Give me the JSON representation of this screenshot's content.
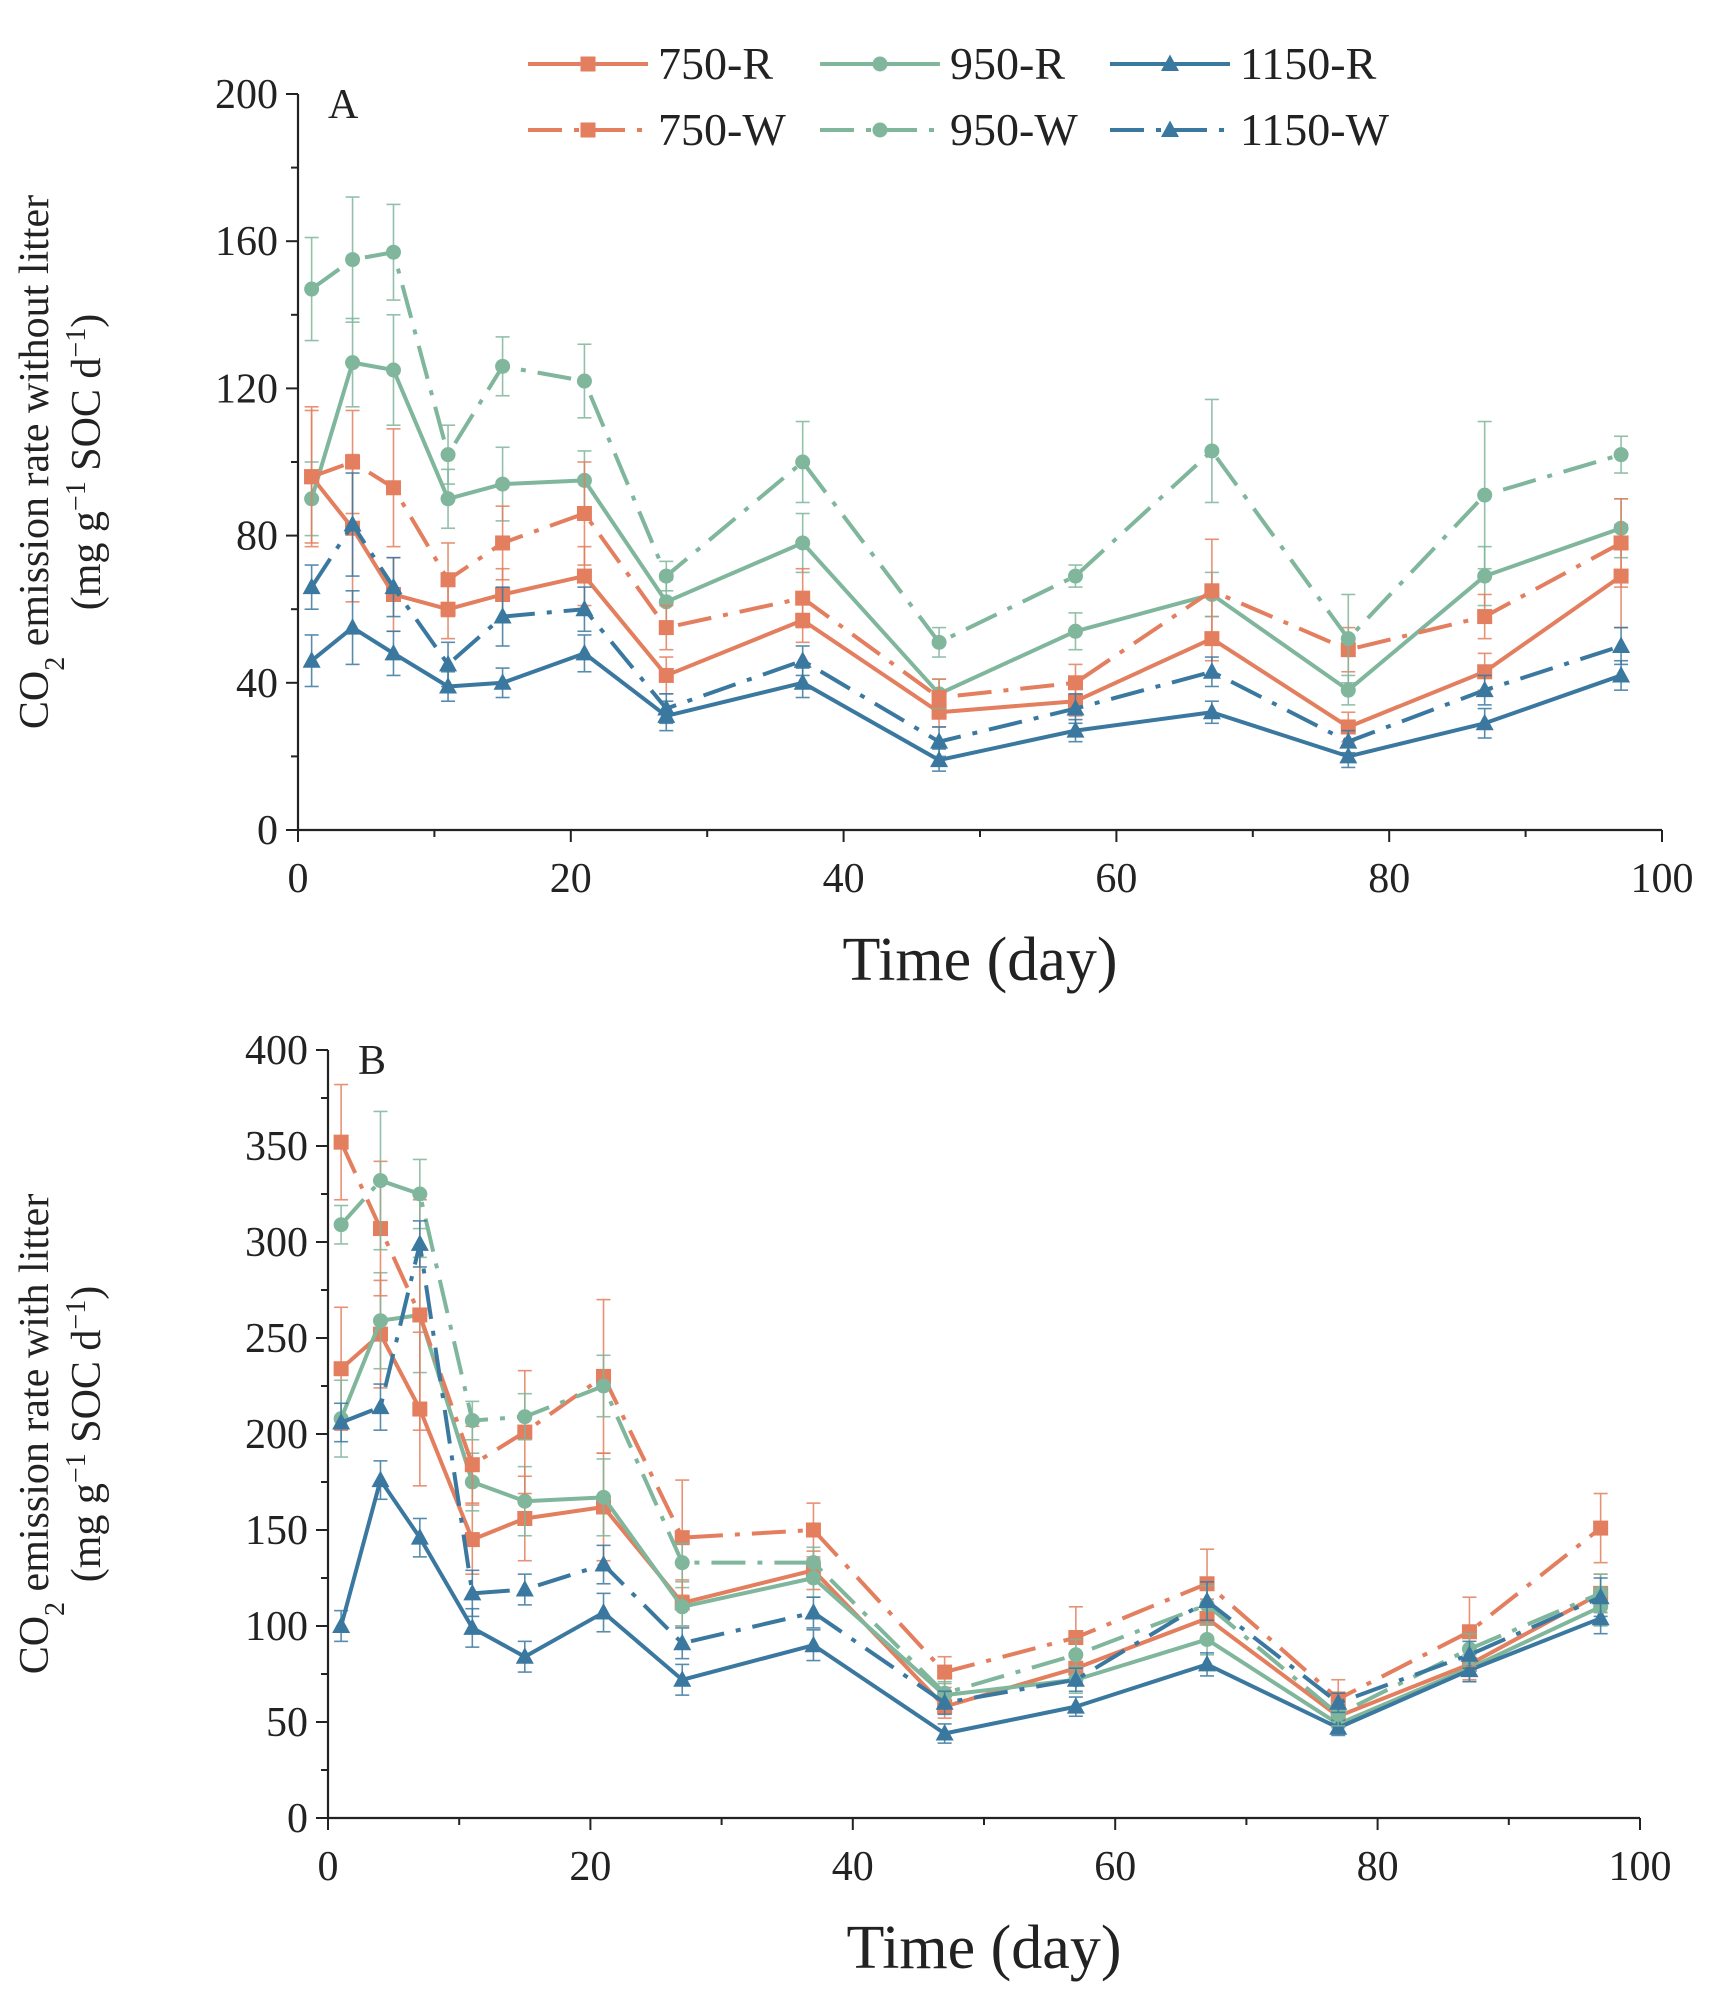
{
  "colors": {
    "750": "#E37E5E",
    "950": "#7FB69C",
    "1150": "#3A78A0"
  },
  "legend": [
    {
      "label": "750-R",
      "group": "750",
      "marker": "square",
      "style": "solid"
    },
    {
      "label": "950-R",
      "group": "950",
      "marker": "circle",
      "style": "solid"
    },
    {
      "label": "1150-R",
      "group": "1150",
      "marker": "triangle",
      "style": "solid"
    },
    {
      "label": "750-W",
      "group": "750",
      "marker": "square",
      "style": "dashdot"
    },
    {
      "label": "950-W",
      "group": "950",
      "marker": "circle",
      "style": "dashdot"
    },
    {
      "label": "1150-W",
      "group": "1150",
      "marker": "triangle",
      "style": "dashdot"
    }
  ],
  "chart_data": [
    {
      "type": "line",
      "panel_label": "A",
      "xlabel": "Time (day)",
      "ylabel_line1": "CO2 emission rate without litter",
      "ylabel_line2": "(mg g−1 SOC d−1)",
      "xlim": [
        0,
        100
      ],
      "ylim": [
        0,
        200
      ],
      "xticks": [
        0,
        20,
        40,
        60,
        80,
        100
      ],
      "yticks": [
        0,
        40,
        80,
        120,
        160,
        200
      ],
      "x": [
        1,
        4,
        7,
        11,
        15,
        21,
        27,
        37,
        47,
        57,
        67,
        77,
        87,
        97
      ],
      "series": [
        {
          "name": "750-R",
          "values": [
            96,
            82,
            64,
            60,
            64,
            69,
            42,
            57,
            32,
            35,
            52,
            28,
            43,
            69
          ],
          "errors": [
            18,
            20,
            10,
            8,
            7,
            8,
            5,
            6,
            4,
            4,
            6,
            4,
            5,
            14
          ]
        },
        {
          "name": "950-R",
          "values": [
            90,
            127,
            125,
            90,
            94,
            95,
            62,
            78,
            37,
            54,
            64,
            38,
            69,
            82
          ],
          "errors": [
            10,
            12,
            15,
            8,
            10,
            8,
            6,
            8,
            4,
            5,
            6,
            4,
            8,
            8
          ]
        },
        {
          "name": "1150-R",
          "values": [
            46,
            55,
            48,
            39,
            40,
            48,
            31,
            40,
            19,
            27,
            32,
            20,
            29,
            42
          ],
          "errors": [
            7,
            10,
            6,
            4,
            4,
            5,
            4,
            4,
            3,
            3,
            3,
            3,
            4,
            4
          ]
        },
        {
          "name": "750-W",
          "values": [
            96,
            100,
            93,
            68,
            78,
            86,
            55,
            63,
            36,
            40,
            65,
            49,
            58,
            78
          ],
          "errors": [
            19,
            14,
            16,
            10,
            10,
            14,
            6,
            8,
            5,
            5,
            14,
            6,
            6,
            12
          ]
        },
        {
          "name": "950-W",
          "values": [
            147,
            155,
            157,
            102,
            126,
            122,
            69,
            100,
            51,
            69,
            103,
            52,
            91,
            102
          ],
          "errors": [
            14,
            17,
            13,
            8,
            8,
            10,
            4,
            11,
            4,
            3,
            14,
            12,
            20,
            5
          ]
        },
        {
          "name": "1150-W",
          "values": [
            66,
            83,
            66,
            45,
            58,
            60,
            33,
            46,
            24,
            33,
            43,
            24,
            38,
            50
          ],
          "errors": [
            6,
            14,
            8,
            6,
            8,
            6,
            4,
            4,
            4,
            4,
            4,
            3,
            4,
            5
          ]
        }
      ]
    },
    {
      "type": "line",
      "panel_label": "B",
      "xlabel": "Time (day)",
      "ylabel_line1": "CO2 emission rate with litter",
      "ylabel_line2": "(mg g−1 SOC d−1)",
      "xlim": [
        0,
        100
      ],
      "ylim": [
        0,
        400
      ],
      "xticks": [
        0,
        20,
        40,
        60,
        80,
        100
      ],
      "yticks": [
        0,
        50,
        100,
        150,
        200,
        250,
        300,
        350,
        400
      ],
      "x": [
        1,
        4,
        7,
        11,
        15,
        21,
        27,
        37,
        47,
        57,
        67,
        77,
        87,
        97
      ],
      "series": [
        {
          "name": "750-R",
          "values": [
            234,
            252,
            213,
            145,
            156,
            162,
            112,
            129,
            58,
            78,
            104,
            53,
            80,
            117
          ],
          "errors": [
            32,
            28,
            40,
            18,
            22,
            28,
            12,
            10,
            6,
            8,
            10,
            6,
            8,
            10
          ]
        },
        {
          "name": "950-R",
          "values": [
            208,
            259,
            262,
            175,
            165,
            167,
            110,
            125,
            64,
            72,
            93,
            49,
            78,
            110
          ],
          "errors": [
            20,
            25,
            30,
            15,
            18,
            20,
            10,
            10,
            6,
            7,
            8,
            5,
            7,
            10
          ]
        },
        {
          "name": "1150-R",
          "values": [
            100,
            176,
            146,
            99,
            84,
            107,
            72,
            90,
            44,
            58,
            80,
            47,
            77,
            104
          ],
          "errors": [
            8,
            10,
            10,
            10,
            8,
            10,
            8,
            8,
            5,
            5,
            6,
            4,
            6,
            8
          ]
        },
        {
          "name": "750-W",
          "values": [
            352,
            307,
            262,
            184,
            201,
            230,
            146,
            150,
            76,
            94,
            122,
            62,
            97,
            151
          ],
          "errors": [
            30,
            35,
            60,
            20,
            32,
            40,
            30,
            14,
            8,
            16,
            18,
            10,
            18,
            18
          ]
        },
        {
          "name": "950-W",
          "values": [
            309,
            332,
            325,
            207,
            209,
            225,
            133,
            133,
            65,
            85,
            111,
            54,
            88,
            117
          ],
          "errors": [
            10,
            36,
            18,
            10,
            12,
            16,
            10,
            8,
            6,
            8,
            10,
            6,
            8,
            10
          ]
        },
        {
          "name": "1150-W",
          "values": [
            206,
            214,
            299,
            117,
            119,
            132,
            91,
            107,
            60,
            72,
            113,
            60,
            85,
            115
          ],
          "errors": [
            10,
            12,
            12,
            12,
            8,
            10,
            8,
            8,
            6,
            6,
            10,
            5,
            7,
            10
          ]
        }
      ]
    }
  ]
}
